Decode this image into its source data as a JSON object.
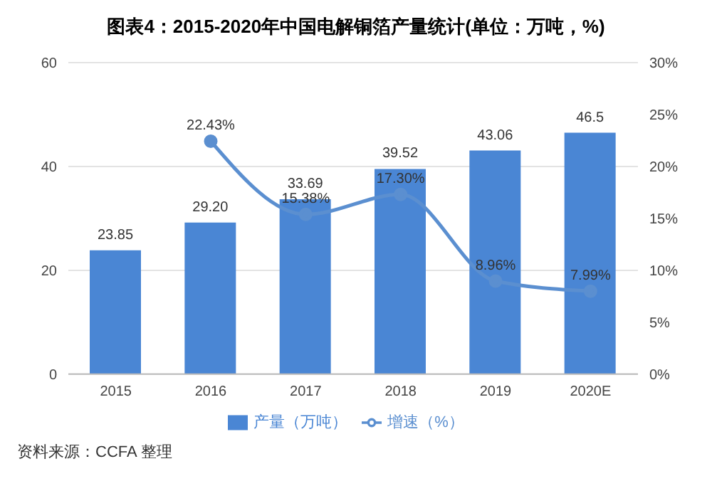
{
  "chart_data": {
    "type": "bar",
    "title": "图表4：2015-2020年中国电解铜箔产量统计(单位：万吨，%)",
    "categories": [
      "2015",
      "2016",
      "2017",
      "2018",
      "2019",
      "2020E"
    ],
    "series": [
      {
        "name": "产量（万吨）",
        "color": "#4a86d4",
        "values": [
          23.85,
          29.2,
          33.69,
          39.52,
          43.06,
          46.5
        ],
        "value_labels": [
          "23.85",
          "29.20",
          "33.69",
          "39.52",
          "43.06",
          "46.5"
        ]
      },
      {
        "name": "增速（%）",
        "type": "line",
        "axis": "y2",
        "color": "#5b8fd0",
        "values": [
          null,
          22.43,
          15.38,
          17.3,
          8.96,
          7.99
        ],
        "value_labels": [
          null,
          "22.43%",
          "15.38%",
          "17.30%",
          "8.96%",
          "7.99%"
        ]
      }
    ],
    "ylim": [
      0,
      60
    ],
    "yticks": [
      0,
      20,
      40,
      60
    ],
    "y2lim": [
      0,
      30
    ],
    "y2ticks": [
      {
        "value": 0,
        "label": "0%"
      },
      {
        "value": 5,
        "label": "5%"
      },
      {
        "value": 10,
        "label": "10%"
      },
      {
        "value": 15,
        "label": "15%"
      },
      {
        "value": 20,
        "label": "20%"
      },
      {
        "value": 25,
        "label": "25%"
      },
      {
        "value": 30,
        "label": "30%"
      }
    ],
    "grid": "y",
    "legend": "bottom",
    "marker": "circle",
    "line_style": "solid",
    "annotations": [
      "资料来源：CCFA 整理"
    ]
  }
}
